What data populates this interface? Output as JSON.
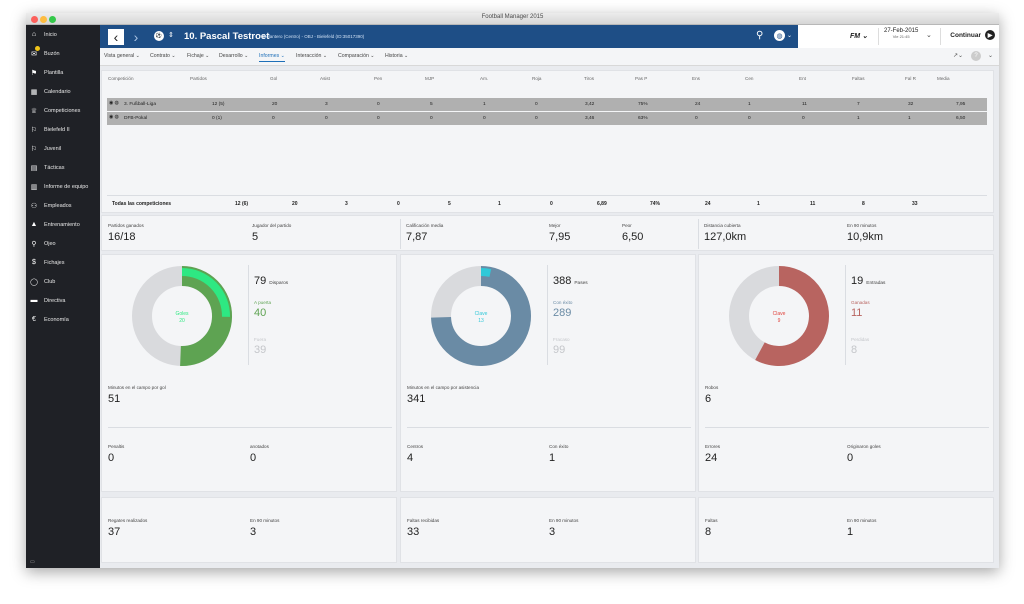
{
  "window": {
    "title": "Football Manager 2015"
  },
  "sidebar": {
    "items": [
      {
        "label": "Inicio",
        "icon": "home-icon"
      },
      {
        "label": "Buzón",
        "icon": "inbox-icon"
      },
      {
        "label": "Plantilla",
        "icon": "squad-icon"
      },
      {
        "label": "Calendario",
        "icon": "calendar-icon"
      },
      {
        "label": "Competiciones",
        "icon": "trophy-icon"
      },
      {
        "label": "Bielefeld II",
        "icon": "team-icon"
      },
      {
        "label": "Juvenil",
        "icon": "youth-icon"
      },
      {
        "label": "Tácticas",
        "icon": "tactics-icon"
      },
      {
        "label": "Informe de equipo",
        "icon": "report-icon"
      },
      {
        "label": "Empleados",
        "icon": "staff-icon"
      },
      {
        "label": "Entrenamiento",
        "icon": "training-icon"
      },
      {
        "label": "Ojeo",
        "icon": "scouting-icon"
      },
      {
        "label": "Fichajes",
        "icon": "transfers-icon"
      },
      {
        "label": "Club",
        "icon": "club-icon"
      },
      {
        "label": "Directiva",
        "icon": "board-icon"
      },
      {
        "label": "Economía",
        "icon": "finances-icon"
      }
    ]
  },
  "header": {
    "player_name": "10. Pascal Testroet",
    "subtitle": "Delantero (Centro) - OBJ - Bielefeld (ID:35017390)",
    "date": "27-Feb-2015",
    "day": "Vie 21:45",
    "continue_label": "Continuar",
    "fm_label": "FM"
  },
  "tabs": [
    {
      "label": "Vista general ⌄"
    },
    {
      "label": "Contrato ⌄"
    },
    {
      "label": "Fichaje ⌄"
    },
    {
      "label": "Desarrollo ⌄"
    },
    {
      "label": "Informes ⌄"
    },
    {
      "label": "Interacción ⌄"
    },
    {
      "label": "Comparación ⌄"
    },
    {
      "label": "Historia ⌄"
    }
  ],
  "table": {
    "headers": [
      "Competición",
      "Partidos",
      "Gol",
      "Asist",
      "Pen",
      "MJP",
      "Am.",
      "Roja",
      "Tiros",
      "Pas P",
      "Ens",
      "Cen",
      "Ent",
      "Faltas",
      "Fal R",
      "Media"
    ],
    "rows": [
      {
        "comp": "3. Fußball-Liga",
        "values": [
          "12 (5)",
          "20",
          "3",
          "0",
          "5",
          "1",
          "0",
          "3,42",
          "75%",
          "24",
          "1",
          "11",
          "7",
          "32",
          "7,95"
        ]
      },
      {
        "comp": "DFB-Pokal",
        "values": [
          "0 (1)",
          "0",
          "0",
          "0",
          "0",
          "0",
          "0",
          "3,46",
          "63%",
          "0",
          "0",
          "0",
          "1",
          "1",
          "6,50"
        ]
      }
    ],
    "totals_label": "Todas las competiciones",
    "totals": [
      "12 (6)",
      "20",
      "3",
      "0",
      "5",
      "1",
      "0",
      "6,89",
      "74%",
      "24",
      "1",
      "11",
      "8",
      "33",
      ""
    ]
  },
  "summary": {
    "partidos_ganados": {
      "label": "Partidos ganados",
      "value": "16/18"
    },
    "jugador_partido": {
      "label": "Jugador del partido",
      "value": "5"
    },
    "calificacion": {
      "label": "Calificación media",
      "value": "7,87"
    },
    "mejor": {
      "label": "Mejor",
      "value": "7,95"
    },
    "peor": {
      "label": "Peor",
      "value": "6,50"
    },
    "distancia": {
      "label": "Distancia cubierta",
      "value": "127,0km"
    },
    "en90": {
      "label": "En 90 minutos",
      "value": "10,9km"
    }
  },
  "cards": {
    "goals": {
      "donut_label": "Goles",
      "donut_value": "20",
      "total_value": "79",
      "total_label": "Disparos",
      "a_label": "A puerta",
      "a_value": "40",
      "b_label": "Fuera",
      "b_value": "39",
      "c_label": "Minutos en el campo por gol",
      "c_value": "51",
      "d_label": "Penaltis",
      "d_value": "0",
      "e_label": "anotados",
      "e_value": "0",
      "f_label": "Regates realizados",
      "f_value": "37",
      "g_label": "En 90 minutos",
      "g_value": "3",
      "fraction_on_target": 0.506,
      "fraction_goals": 0.253,
      "color": "#5ea352",
      "color_light": "#2ee882",
      "donut_text_color": "#2ee882"
    },
    "passes": {
      "donut_label": "Clave",
      "donut_value": "13",
      "total_value": "388",
      "total_label": "Pases",
      "a_label": "Con éxito",
      "a_value": "289",
      "b_label": "Fracaso",
      "b_value": "99",
      "c_label": "Minutos en el campo por asistencia",
      "c_value": "341",
      "d_label": "Centros",
      "d_value": "4",
      "e_label": "Con éxito",
      "e_value": "1",
      "f_label": "Faltas recibidas",
      "f_value": "33",
      "g_label": "En 90 minutos",
      "g_value": "3",
      "fraction_success": 0.745,
      "fraction_key": 0.034,
      "color": "#6a8ba5",
      "color_light": "#2fc8d8",
      "donut_text_color": "#2fc8d8"
    },
    "tackles": {
      "donut_label": "Clave",
      "donut_value": "9",
      "total_value": "19",
      "total_label": "Entradas",
      "a_label": "Ganadas",
      "a_value": "11",
      "b_label": "Perdidas",
      "b_value": "8",
      "c_label": "Robos",
      "c_value": "6",
      "d_label": "Errores",
      "d_value": "24",
      "e_label": "Originaron goles",
      "e_value": "0",
      "f_label": "Faltas",
      "f_value": "8",
      "g_label": "En 90 minutos",
      "g_value": "1",
      "fraction_won": 0.579,
      "color": "#b86460",
      "donut_text_color": "#e0413b"
    }
  },
  "colors": {
    "header": "#1e4e86",
    "sidebar": "#1f2126",
    "accent": "#1e6fb8"
  }
}
